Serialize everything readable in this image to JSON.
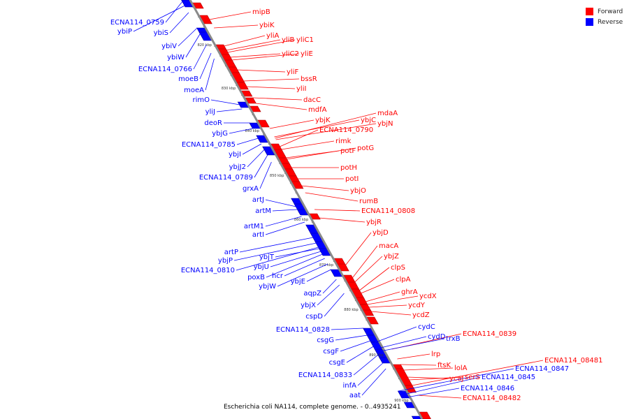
{
  "caption": "Escherichia coli NA114, complete genome. - 0..4935241",
  "legend": [
    {
      "label": "Forward",
      "color": "#ff0000"
    },
    {
      "label": "Reverse",
      "color": "#0000ff"
    }
  ],
  "colors": {
    "forward": "#ff0000",
    "reverse": "#0000ff",
    "backbone": "#888888"
  },
  "ticks": [
    "820 kbp",
    "830 kbp",
    "840 kbp",
    "850 kbp",
    "860 kbp",
    "870 kbp",
    "880 kbp",
    "890 kbp",
    "900 kbp"
  ],
  "forward_genes": [
    "mipB",
    "ybiK",
    "yliA",
    "yliB",
    "yliC1",
    "yliC2",
    "yliE",
    "yliF",
    "bssR",
    "yliI",
    "dacC",
    "mdfA",
    "ybjK",
    "ybjC",
    "mdaA",
    "ybjN",
    "ECNA114_0790",
    "rimk",
    "potF",
    "potG",
    "potH",
    "potI",
    "ybjO",
    "rumB",
    "ECNA114_0808",
    "ybjR",
    "ybjD",
    "macA",
    "ybjZ",
    "clpS",
    "clpA",
    "ghrA",
    "ycdX",
    "ycdY",
    "ycdZ",
    "ECNA114_0839",
    "lrp",
    "ftsK",
    "lolA",
    "ycaJ",
    "serS",
    "ECNA114_08481",
    "ECNA114_08482"
  ],
  "reverse_genes": [
    "ECNA114_0759",
    "ybiP",
    "ybiS",
    "ybiV",
    "ybiW",
    "ECNA114_0766",
    "moeB",
    "moeA",
    "rimO",
    "yliJ",
    "deoR",
    "ybjG",
    "ECNA114_0785",
    "ybjI",
    "ybjJ2",
    "ECNA114_0789",
    "grxA",
    "artJ",
    "artM",
    "artM1",
    "artI",
    "artP",
    "ybjP",
    "ECNA114_0810",
    "ybjT",
    "ybjU",
    "poxB",
    "hcr",
    "ybjW",
    "ybjE",
    "aqpZ",
    "ybjX",
    "cspD",
    "ECNA114_0828",
    "csgG",
    "csgF",
    "csgE",
    "ECNA114_0833",
    "infA",
    "aat",
    "cydC",
    "cydD",
    "trxB",
    "ECNA114_0847",
    "ECNA114_0845",
    "ECNA114_0846"
  ]
}
